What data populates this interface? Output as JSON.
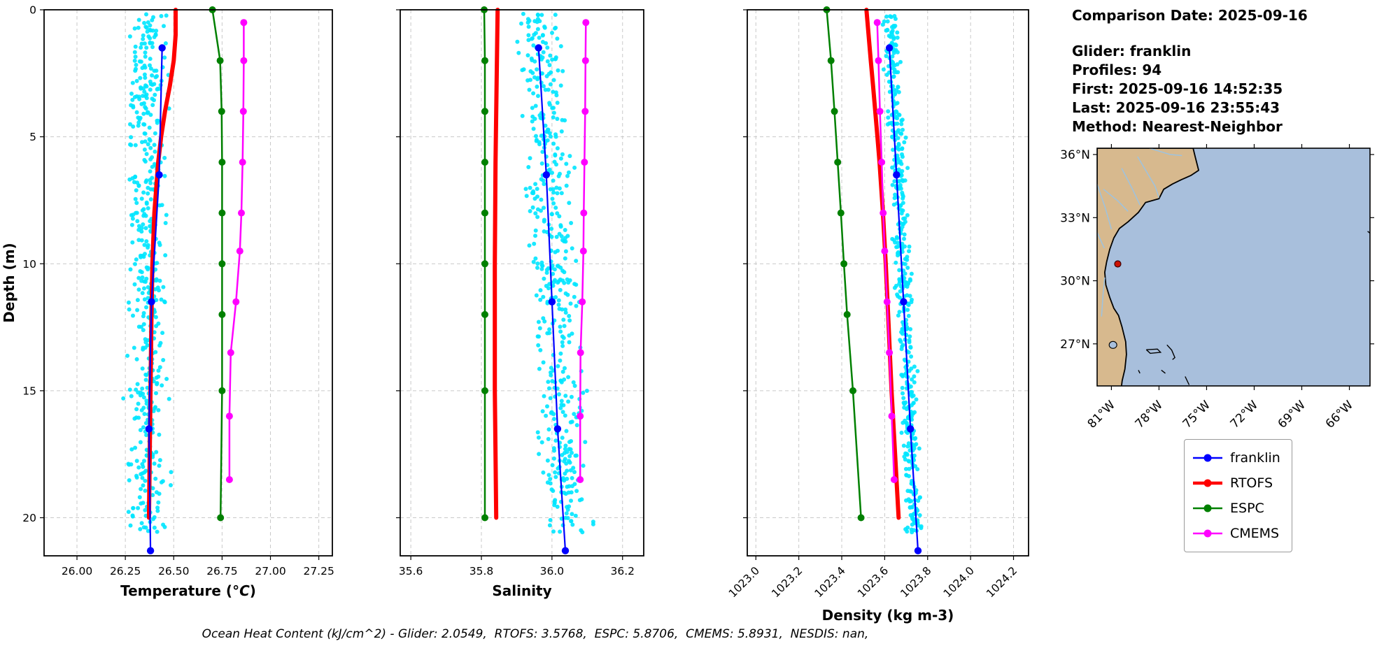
{
  "info_panel": {
    "title": "Comparison Date: 2025-09-16",
    "lines": [
      "Glider: franklin",
      "Profiles: 94",
      "First: 2025-09-16 14:52:35",
      "Last: 2025-09-16 23:55:43",
      "Method: Nearest-Neighbor"
    ]
  },
  "footer": {
    "text": "Ocean Heat Content (kJ/cm^2) - Glider: 2.0549,  RTOFS: 3.5768,  ESPC: 5.8706,  CMEMS: 5.8931,  NESDIS: nan,"
  },
  "legend": {
    "entries": [
      {
        "label": "franklin",
        "color": "#0000ff",
        "lw": 2.5
      },
      {
        "label": "RTOFS",
        "color": "#ff0000",
        "lw": 4.5
      },
      {
        "label": "ESPC",
        "color": "#008000",
        "lw": 2.5
      },
      {
        "label": "CMEMS",
        "color": "#ff00ff",
        "lw": 2.5
      }
    ]
  },
  "map": {
    "ocean_color": "#a8bfdc",
    "land_color": "#d7b98e",
    "river_color": "#9dc3e0",
    "extent": {
      "lon_min": -81.9,
      "lon_max": -64.7,
      "lat_min": 25.0,
      "lat_max": 36.3
    },
    "lat_ticks": [
      {
        "v": 36,
        "label": "36°N"
      },
      {
        "v": 33,
        "label": "33°N"
      },
      {
        "v": 30,
        "label": "30°N"
      },
      {
        "v": 27,
        "label": "27°N"
      }
    ],
    "lon_ticks": [
      {
        "v": -81,
        "label": "81°W"
      },
      {
        "v": -78,
        "label": "78°W"
      },
      {
        "v": -75,
        "label": "75°W"
      },
      {
        "v": -72,
        "label": "72°W"
      },
      {
        "v": -69,
        "label": "69°W"
      },
      {
        "v": -66,
        "label": "66°W"
      }
    ],
    "glider_marker": {
      "lon": -80.6,
      "lat": 30.8,
      "color": "#cc1100"
    }
  },
  "chart_data": [
    {
      "type": "line",
      "id": "temperature",
      "xlabel": "Temperature (°C)",
      "xlabel_parts": [
        [
          "Temperature (",
          false
        ],
        [
          "°C",
          true
        ],
        [
          ")",
          false
        ]
      ],
      "ylabel": "Depth (m)",
      "xlim": [
        25.83,
        27.32
      ],
      "ylim": [
        0,
        21.5
      ],
      "rotate_xticklabels": false,
      "show_ytick_labels": true,
      "xticks": [
        {
          "v": 26.0,
          "label": "26.00"
        },
        {
          "v": 26.25,
          "label": "26.25"
        },
        {
          "v": 26.5,
          "label": "26.50"
        },
        {
          "v": 26.75,
          "label": "26.75"
        },
        {
          "v": 27.0,
          "label": "27.00"
        },
        {
          "v": 27.25,
          "label": "27.25"
        }
      ],
      "yticks": [
        {
          "v": 0,
          "label": "0"
        },
        {
          "v": 5,
          "label": "5"
        },
        {
          "v": 10,
          "label": "10"
        },
        {
          "v": 15,
          "label": "15"
        },
        {
          "v": 20,
          "label": "20"
        }
      ],
      "scatter": {
        "name": "glider-raw-points",
        "color": "#00e5ff",
        "seed": 11,
        "count": 480,
        "top_center": 26.36,
        "bottom_center": 26.37,
        "spread": 0.08,
        "depth_range": [
          0.15,
          20.6
        ]
      },
      "series": [
        {
          "name": "RTOFS",
          "color": "#ff0000",
          "lw": 6,
          "marker_r": 0,
          "depths": [
            0,
            1,
            2,
            3,
            4,
            5,
            6,
            8,
            10,
            12,
            15,
            20
          ],
          "values": [
            26.51,
            26.51,
            26.5,
            26.48,
            26.455,
            26.435,
            26.42,
            26.4,
            26.39,
            26.385,
            26.38,
            26.372
          ]
        },
        {
          "name": "ESPC",
          "color": "#008000",
          "lw": 2.5,
          "marker_r": 5,
          "depths": [
            0,
            2,
            4,
            6,
            8,
            10,
            12,
            15,
            20
          ],
          "values": [
            26.7,
            26.74,
            26.748,
            26.75,
            26.75,
            26.75,
            26.75,
            26.75,
            26.742
          ]
        },
        {
          "name": "CMEMS",
          "color": "#ff00ff",
          "lw": 2.5,
          "marker_r": 5,
          "depths": [
            0.5,
            2,
            4,
            6,
            8,
            9.5,
            11.5,
            13.5,
            16,
            18.5
          ],
          "values": [
            26.862,
            26.862,
            26.86,
            26.856,
            26.85,
            26.842,
            26.822,
            26.795,
            26.788,
            26.788
          ]
        },
        {
          "name": "franklin",
          "color": "#0000ff",
          "lw": 2.2,
          "marker_r": 5.2,
          "depths": [
            1.5,
            6.5,
            11.5,
            16.5,
            21.3
          ],
          "values": [
            26.44,
            26.425,
            26.385,
            26.372,
            26.38
          ]
        }
      ]
    },
    {
      "type": "line",
      "id": "salinity",
      "xlabel": "Salinity",
      "xlabel_parts": [
        [
          "Salinity",
          false
        ]
      ],
      "ylabel": "",
      "xlim": [
        35.57,
        36.26
      ],
      "ylim": [
        0,
        21.5
      ],
      "rotate_xticklabels": false,
      "show_ytick_labels": false,
      "xticks": [
        {
          "v": 35.6,
          "label": "35.6"
        },
        {
          "v": 35.8,
          "label": "35.8"
        },
        {
          "v": 36.0,
          "label": "36.0"
        },
        {
          "v": 36.2,
          "label": "36.2"
        }
      ],
      "yticks": [
        {
          "v": 0,
          "label": "0"
        },
        {
          "v": 5,
          "label": "5"
        },
        {
          "v": 10,
          "label": "10"
        },
        {
          "v": 15,
          "label": "15"
        },
        {
          "v": 20,
          "label": "20"
        }
      ],
      "scatter": {
        "name": "glider-raw-points",
        "color": "#00e5ff",
        "seed": 22,
        "count": 480,
        "top_center": 35.965,
        "bottom_center": 36.045,
        "spread": 0.052,
        "depth_range": [
          0.15,
          20.6
        ]
      },
      "series": [
        {
          "name": "RTOFS",
          "color": "#ff0000",
          "lw": 6,
          "marker_r": 0,
          "depths": [
            0,
            1,
            2,
            3,
            4,
            5,
            6,
            8,
            10,
            12,
            15,
            20
          ],
          "values": [
            35.846,
            35.845,
            35.844,
            35.843,
            35.842,
            35.841,
            35.84,
            35.839,
            35.838,
            35.838,
            35.838,
            35.842
          ]
        },
        {
          "name": "ESPC",
          "color": "#008000",
          "lw": 2.5,
          "marker_r": 5,
          "depths": [
            0,
            2,
            4,
            6,
            8,
            10,
            12,
            15,
            20
          ],
          "values": [
            35.808,
            35.81,
            35.81,
            35.81,
            35.81,
            35.81,
            35.81,
            35.81,
            35.81
          ]
        },
        {
          "name": "CMEMS",
          "color": "#ff00ff",
          "lw": 2.5,
          "marker_r": 5,
          "depths": [
            0.5,
            2,
            4,
            6,
            8,
            9.5,
            11.5,
            13.5,
            16,
            18.5
          ],
          "values": [
            36.096,
            36.095,
            36.094,
            36.092,
            36.09,
            36.089,
            36.086,
            36.081,
            36.08,
            36.08
          ]
        },
        {
          "name": "franklin",
          "color": "#0000ff",
          "lw": 2.2,
          "marker_r": 5.2,
          "depths": [
            1.5,
            6.5,
            11.5,
            16.5,
            21.3
          ],
          "values": [
            35.962,
            35.984,
            36.0,
            36.016,
            36.038
          ]
        }
      ]
    },
    {
      "type": "line",
      "id": "density",
      "xlabel": "Density (kg m-3)",
      "xlabel_parts": [
        [
          "Density (kg m-3)",
          false
        ]
      ],
      "ylabel": "",
      "xlim": [
        1022.96,
        1024.27
      ],
      "ylim": [
        0,
        21.5
      ],
      "rotate_xticklabels": true,
      "show_ytick_labels": false,
      "xticks": [
        {
          "v": 1023.0,
          "label": "1023.0"
        },
        {
          "v": 1023.2,
          "label": "1023.2"
        },
        {
          "v": 1023.4,
          "label": "1023.4"
        },
        {
          "v": 1023.6,
          "label": "1023.6"
        },
        {
          "v": 1023.8,
          "label": "1023.8"
        },
        {
          "v": 1024.0,
          "label": "1024.0"
        },
        {
          "v": 1024.2,
          "label": "1024.2"
        }
      ],
      "yticks": [
        {
          "v": 0,
          "label": "0"
        },
        {
          "v": 5,
          "label": "5"
        },
        {
          "v": 10,
          "label": "10"
        },
        {
          "v": 15,
          "label": "15"
        },
        {
          "v": 20,
          "label": "20"
        }
      ],
      "scatter": {
        "name": "glider-raw-points",
        "color": "#00e5ff",
        "seed": 33,
        "count": 480,
        "top_center": 1023.625,
        "bottom_center": 1023.748,
        "spread": 0.03,
        "depth_range": [
          0.15,
          20.6
        ]
      },
      "series": [
        {
          "name": "RTOFS",
          "color": "#ff0000",
          "lw": 6,
          "marker_r": 0,
          "depths": [
            0,
            1,
            2,
            3,
            4,
            5,
            6,
            8,
            10,
            12,
            15,
            20
          ],
          "values": [
            1023.515,
            1023.525,
            1023.535,
            1023.546,
            1023.556,
            1023.566,
            1023.576,
            1023.592,
            1023.605,
            1023.616,
            1023.632,
            1023.665
          ]
        },
        {
          "name": "ESPC",
          "color": "#008000",
          "lw": 2.5,
          "marker_r": 5,
          "depths": [
            0,
            2,
            4,
            6,
            8,
            10,
            12,
            15,
            20
          ],
          "values": [
            1023.33,
            1023.35,
            1023.366,
            1023.381,
            1023.396,
            1023.41,
            1023.425,
            1023.452,
            1023.49
          ]
        },
        {
          "name": "CMEMS",
          "color": "#ff00ff",
          "lw": 2.5,
          "marker_r": 5,
          "depths": [
            0.5,
            2,
            4,
            6,
            8,
            9.5,
            11.5,
            13.5,
            16,
            18.5
          ],
          "values": [
            1023.565,
            1023.571,
            1023.578,
            1023.586,
            1023.593,
            1023.6,
            1023.611,
            1023.622,
            1023.633,
            1023.644
          ]
        },
        {
          "name": "franklin",
          "color": "#0000ff",
          "lw": 2.2,
          "marker_r": 5.2,
          "depths": [
            1.5,
            6.5,
            11.5,
            16.5,
            21.3
          ],
          "values": [
            1023.622,
            1023.655,
            1023.688,
            1023.72,
            1023.755
          ]
        }
      ]
    }
  ]
}
